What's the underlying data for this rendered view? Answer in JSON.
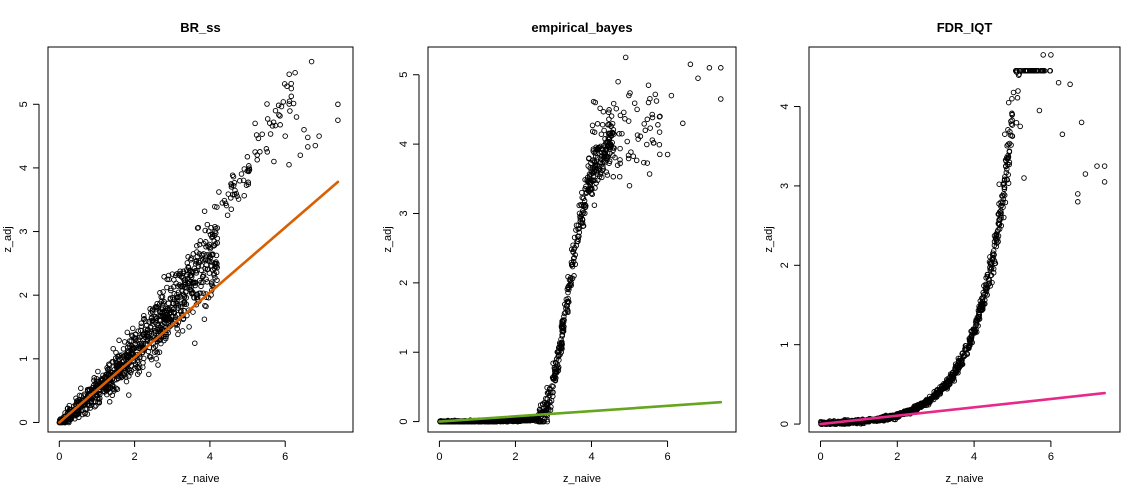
{
  "chart_data": [
    {
      "type": "scatter",
      "title": "BR_ss",
      "xlabel": "z_naive",
      "ylabel": "z_adj",
      "xlim": [
        -0.3,
        7.8
      ],
      "ylim": [
        -0.15,
        5.9
      ],
      "xticks": [
        0,
        2,
        4,
        6
      ],
      "yticks": [
        0,
        1,
        2,
        3,
        4,
        5
      ],
      "grid": false,
      "legend": "none",
      "point_color": "#000000",
      "line": {
        "x": [
          0,
          7.4
        ],
        "y": [
          0,
          3.78
        ],
        "color": "#D95F02"
      },
      "outliers": [
        [
          6.7,
          5.67
        ],
        [
          7.4,
          5.0
        ],
        [
          7.4,
          4.75
        ],
        [
          6.9,
          4.5
        ],
        [
          6.6,
          4.48
        ],
        [
          6.6,
          4.33
        ],
        [
          6.8,
          4.35
        ],
        [
          6.5,
          4.6
        ],
        [
          5.2,
          4.7
        ],
        [
          5.5,
          4.3
        ],
        [
          6.1,
          4.05
        ],
        [
          6.3,
          4.8
        ],
        [
          6.4,
          4.2
        ],
        [
          5.7,
          4.1
        ],
        [
          6.0,
          4.5
        ]
      ],
      "outlier_band": {
        "x0": 4.2,
        "x1": 6.3,
        "slope": 0.72,
        "scatter": 0.25
      }
    },
    {
      "type": "scatter",
      "title": "empirical_bayes",
      "xlabel": "z_naive",
      "ylabel": "z_adj",
      "xlim": [
        -0.3,
        7.8
      ],
      "ylim": [
        -0.15,
        5.4
      ],
      "xticks": [
        0,
        2,
        4,
        6
      ],
      "yticks": [
        0,
        1,
        2,
        3,
        4,
        5
      ],
      "grid": false,
      "legend": "none",
      "point_color": "#000000",
      "line": {
        "x": [
          0,
          7.4
        ],
        "y": [
          0,
          0.28
        ],
        "color": "#66A61E"
      },
      "outliers": [
        [
          4.9,
          5.25
        ],
        [
          6.6,
          5.15
        ],
        [
          7.1,
          5.1
        ],
        [
          7.4,
          5.1
        ],
        [
          4.7,
          4.9
        ],
        [
          5.5,
          4.85
        ],
        [
          6.1,
          4.7
        ],
        [
          6.8,
          4.95
        ],
        [
          7.4,
          4.65
        ],
        [
          5.8,
          4.4
        ],
        [
          6.4,
          4.3
        ],
        [
          4.1,
          4.6
        ],
        [
          5.2,
          4.5
        ],
        [
          4.8,
          4.15
        ],
        [
          5.0,
          3.4
        ],
        [
          6.0,
          3.85
        ]
      ],
      "outlier_band": {
        "x0": 4.0,
        "x1": 5.8,
        "slope": 0.1,
        "scatter": 0.35
      }
    },
    {
      "type": "scatter",
      "title": "FDR_IQT",
      "xlabel": "z_naive",
      "ylabel": "z_adj",
      "xlim": [
        -0.3,
        7.8
      ],
      "ylim": [
        -0.1,
        4.75
      ],
      "xticks": [
        0,
        2,
        4,
        6
      ],
      "yticks": [
        0,
        1,
        2,
        3,
        4
      ],
      "grid": false,
      "legend": "none",
      "point_color": "#000000",
      "line": {
        "x": [
          0,
          7.4
        ],
        "y": [
          0,
          0.39
        ],
        "color": "#E7298A"
      },
      "outliers": [
        [
          5.8,
          4.65
        ],
        [
          6.0,
          4.65
        ],
        [
          6.2,
          4.3
        ],
        [
          6.5,
          4.28
        ],
        [
          4.9,
          4.05
        ],
        [
          5.2,
          3.75
        ],
        [
          5.7,
          3.95
        ],
        [
          6.3,
          3.65
        ],
        [
          6.8,
          3.8
        ],
        [
          7.2,
          3.25
        ],
        [
          7.4,
          3.25
        ],
        [
          7.4,
          3.05
        ],
        [
          6.9,
          3.15
        ],
        [
          6.7,
          2.9
        ],
        [
          6.7,
          2.8
        ],
        [
          5.3,
          3.1
        ]
      ],
      "outlier_band": {
        "x0": 4.5,
        "x1": 6.0,
        "slope": 0.1,
        "scatter": 0.35
      }
    }
  ]
}
